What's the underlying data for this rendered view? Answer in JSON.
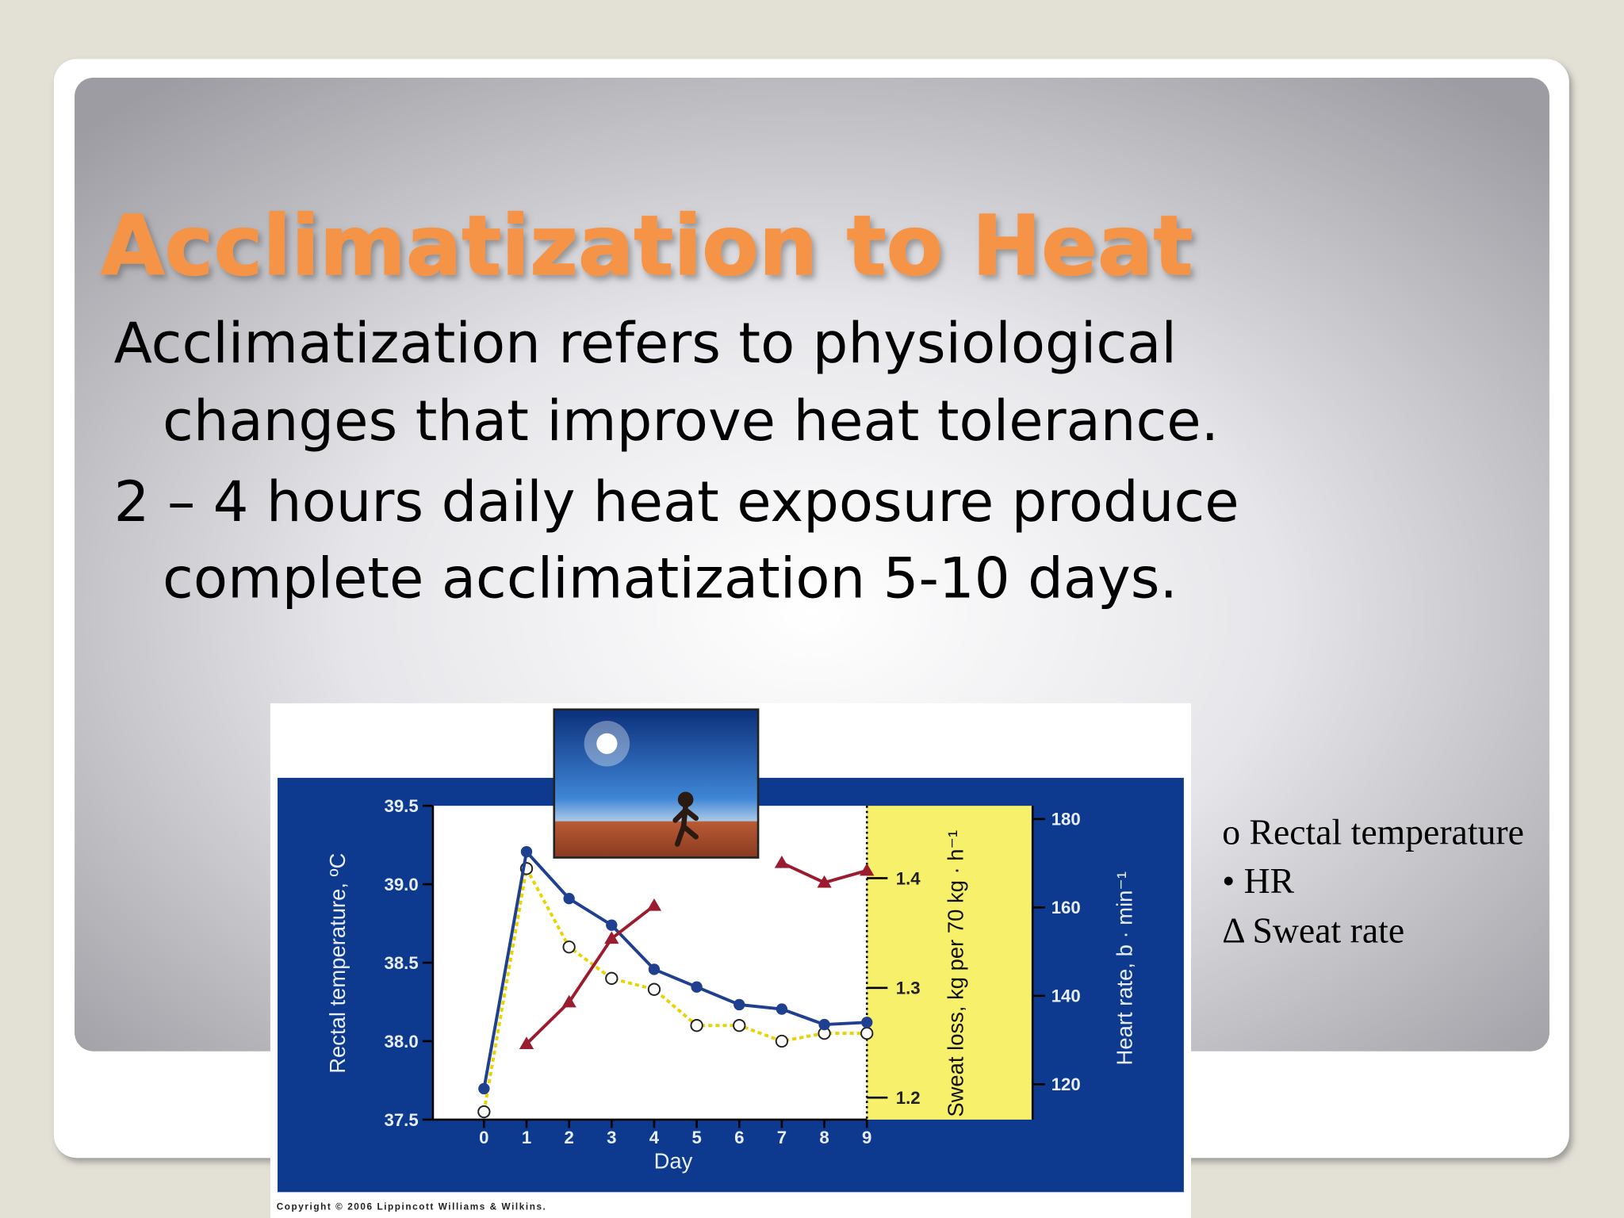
{
  "slide": {
    "title": "Acclimatization to Heat",
    "bullets": [
      [
        "Acclimatization refers to physiological",
        "changes that improve heat tolerance."
      ],
      [
        "2 – 4 hours daily heat exposure produce",
        "complete acclimatization 5-10 days."
      ]
    ],
    "notes": [
      "o Rectal temperature",
      "• HR",
      "Δ Sweat rate"
    ],
    "copyright": "Copyright © 2006 Lippincott Williams & Wilkins."
  },
  "chart_data": {
    "type": "line",
    "x_label": "Day",
    "y_label": "Rectal temperature, ºC",
    "y2_label": "Heart rate, b · min⁻¹",
    "y3_label": "Sweat loss, kg per 70 kg · h⁻¹",
    "x": [
      0,
      1,
      2,
      3,
      4,
      5,
      6,
      7,
      8,
      9
    ],
    "xlim": [
      -1.2,
      9
    ],
    "xticks": [
      0,
      1,
      2,
      3,
      4,
      5,
      6,
      7,
      8,
      9
    ],
    "ylim": [
      37.5,
      39.5
    ],
    "yticks": [
      37.5,
      {
        "value": 38,
        "label": "38.0"
      },
      38.5,
      {
        "value": 39,
        "label": "39.0"
      },
      39.5
    ],
    "y2lim": [
      112,
      183
    ],
    "y2ticks": [
      120,
      140,
      160,
      180
    ],
    "y3lim": [
      1.18,
      1.466
    ],
    "y3ticks": [
      1.2,
      1.3,
      1.4
    ],
    "series": [
      {
        "name": "Rectal temperature",
        "color": "#e8d400",
        "marker": "open-circle",
        "values": [
          37.55,
          39.1,
          38.6,
          38.4,
          38.33,
          38.1,
          38.1,
          38.0,
          38.05,
          38.05
        ]
      },
      {
        "name": "HR",
        "color": "#1f3f8f",
        "marker": "dot",
        "axis": "y2",
        "values": [
          119,
          172.6,
          162,
          156,
          146,
          142,
          138,
          137,
          133.5,
          134
        ]
      },
      {
        "name": "Sweat rate",
        "color": "#9b1c2e",
        "marker": "triangle",
        "axis": "y3",
        "values": [
          null,
          1.249,
          1.287,
          1.345,
          1.375,
          null,
          null,
          1.414,
          1.396,
          1.407
        ]
      }
    ]
  }
}
